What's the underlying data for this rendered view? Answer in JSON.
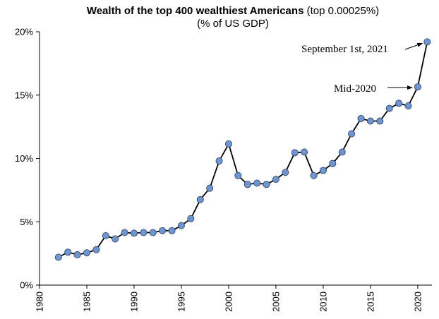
{
  "chart_data": {
    "type": "line",
    "title_bold": "Wealth of the top 400 wealthiest Americans",
    "title_suffix": " (top 0.00025%)",
    "subtitle": "(% of US GDP)",
    "xlabel": "",
    "ylabel": "",
    "xlim": [
      1980,
      2021.5
    ],
    "ylim": [
      0,
      20
    ],
    "y_ticks": [
      0,
      5,
      10,
      15,
      20
    ],
    "y_tick_labels": [
      "0%",
      "5%",
      "10%",
      "15%",
      "20%"
    ],
    "x_ticks": [
      1980,
      1985,
      1990,
      1995,
      2000,
      2005,
      2010,
      2015,
      2020
    ],
    "x_tick_labels": [
      "1980",
      "1985",
      "1990",
      "1995",
      "2000",
      "2005",
      "2010",
      "2015",
      "2020"
    ],
    "series": [
      {
        "name": "Top 400 wealth (% of GDP)",
        "line_color": "#000000",
        "marker_color": "#6F95CF",
        "x": [
          1982,
          1983,
          1984,
          1985,
          1986,
          1987,
          1988,
          1989,
          1990,
          1991,
          1992,
          1993,
          1994,
          1995,
          1996,
          1997,
          1998,
          1999,
          2000,
          2001,
          2002,
          2003,
          2004,
          2005,
          2006,
          2007,
          2008,
          2009,
          2010,
          2011,
          2012,
          2013,
          2014,
          2015,
          2016,
          2017,
          2018,
          2019,
          2020,
          2021
        ],
        "values": [
          2.2,
          2.6,
          2.4,
          2.55,
          2.8,
          3.9,
          3.65,
          4.15,
          4.1,
          4.15,
          4.15,
          4.3,
          4.3,
          4.7,
          5.25,
          6.75,
          7.65,
          9.8,
          11.15,
          8.65,
          7.95,
          8.05,
          7.95,
          8.35,
          8.9,
          10.45,
          10.5,
          8.65,
          9.05,
          9.6,
          10.5,
          11.95,
          13.15,
          12.95,
          12.95,
          13.95,
          14.35,
          14.15,
          15.65,
          19.2
        ]
      }
    ],
    "annotations": [
      {
        "text": "September 1st, 2021",
        "target_x": 2021,
        "target_y": 19.2
      },
      {
        "text": "Mid-2020",
        "target_x": 2020,
        "target_y": 15.65
      }
    ]
  }
}
